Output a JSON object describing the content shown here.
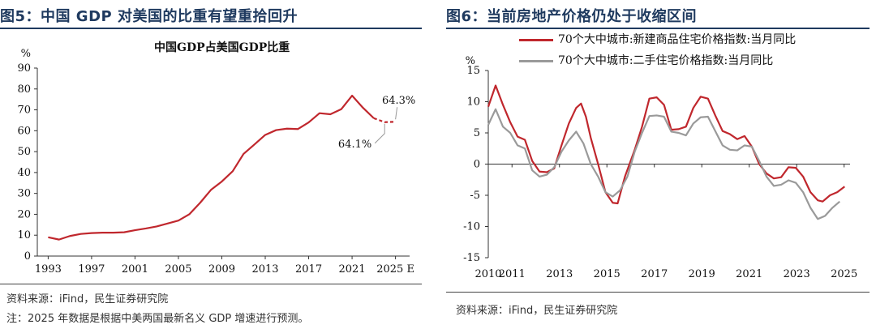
{
  "left": {
    "fig_title": "图5：中国 GDP 对美国的比重有望重拾回升",
    "chart_title": "中国GDP占美国GDP比重",
    "unit": "%",
    "annotation_2024": "64.1%",
    "annotation_2025": "64.3%",
    "source": "资料来源：iFind，民生证券研究院",
    "note": "注：2025 年数据是根据中美两国最新名义 GDP 增速进行预测。"
  },
  "right": {
    "fig_title": "图6：当前房地产价格仍处于收缩区间",
    "unit": "%",
    "source": "资料来源：iFind，民生证券研究院"
  },
  "chart_data": [
    {
      "type": "line",
      "title": "中国GDP占美国GDP比重",
      "ylabel": "%",
      "ylim": [
        0,
        90
      ],
      "yticks": [
        0,
        10,
        20,
        30,
        40,
        50,
        60,
        70,
        80,
        90
      ],
      "xticks": [
        "1993",
        "1997",
        "2001",
        "2005",
        "2009",
        "2013",
        "2017",
        "2021",
        "2025E"
      ],
      "grid": false,
      "color": "#c0272d",
      "x": [
        1993,
        1994,
        1995,
        1996,
        1997,
        1998,
        1999,
        2000,
        2001,
        2002,
        2003,
        2004,
        2005,
        2006,
        2007,
        2008,
        2009,
        2010,
        2011,
        2012,
        2013,
        2014,
        2015,
        2016,
        2017,
        2018,
        2019,
        2020,
        2021,
        2022,
        2023,
        2024,
        2025
      ],
      "values": [
        9.0,
        7.9,
        9.6,
        10.6,
        11.0,
        11.2,
        11.2,
        11.4,
        12.4,
        13.2,
        14.2,
        15.6,
        17.0,
        20.0,
        25.5,
        31.7,
        35.7,
        40.6,
        48.9,
        53.4,
        58.0,
        60.3,
        61.0,
        60.8,
        64.0,
        68.4,
        67.9,
        70.3,
        76.8,
        71.0,
        66.0,
        64.1,
        64.3
      ]
    },
    {
      "type": "line",
      "ylabel": "%",
      "ylim": [
        -15,
        15
      ],
      "yticks": [
        -15,
        -10,
        -5,
        0,
        5,
        10,
        15
      ],
      "xticks": [
        "2010",
        "2011",
        "2013",
        "2015",
        "2017",
        "2019",
        "2021",
        "2023",
        "2025"
      ],
      "legend_position": "top",
      "grid": false,
      "series": [
        {
          "name": "70个大中城市:新建商品住宅价格指数:当月同比",
          "color": "#c0272d",
          "points": [
            [
              0,
              9.2
            ],
            [
              3,
              12.6
            ],
            [
              6,
              9.5
            ],
            [
              9,
              6.7
            ],
            [
              12,
              4.4
            ],
            [
              15,
              3.9
            ],
            [
              18,
              0.5
            ],
            [
              21,
              -1.2
            ],
            [
              24,
              -1.3
            ],
            [
              27,
              -0.7
            ],
            [
              30,
              3.0
            ],
            [
              33,
              6.5
            ],
            [
              36,
              9.0
            ],
            [
              38,
              9.7
            ],
            [
              40,
              7.6
            ],
            [
              42,
              4.2
            ],
            [
              45,
              0.0
            ],
            [
              48,
              -4.5
            ],
            [
              51,
              -6.2
            ],
            [
              53,
              -6.3
            ],
            [
              56,
              -2.0
            ],
            [
              60,
              2.3
            ],
            [
              63,
              6.0
            ],
            [
              66,
              10.5
            ],
            [
              69,
              10.7
            ],
            [
              72,
              9.5
            ],
            [
              75,
              5.5
            ],
            [
              78,
              5.6
            ],
            [
              81,
              6.0
            ],
            [
              84,
              9.0
            ],
            [
              87,
              10.8
            ],
            [
              90,
              10.5
            ],
            [
              93,
              7.8
            ],
            [
              96,
              5.3
            ],
            [
              99,
              4.8
            ],
            [
              102,
              4.0
            ],
            [
              105,
              4.5
            ],
            [
              108,
              2.8
            ],
            [
              111,
              0.0
            ],
            [
              114,
              -1.5
            ],
            [
              117,
              -2.3
            ],
            [
              120,
              -2.1
            ],
            [
              123,
              -0.5
            ],
            [
              126,
              -0.6
            ],
            [
              129,
              -2.0
            ],
            [
              132,
              -4.5
            ],
            [
              135,
              -5.8
            ],
            [
              137,
              -6.0
            ],
            [
              140,
              -5.0
            ],
            [
              143,
              -4.5
            ],
            [
              146,
              -3.6
            ]
          ]
        },
        {
          "name": "70个大中城市:二手住宅价格指数:当月同比",
          "color": "#9a9a9a",
          "points": [
            [
              0,
              6.3
            ],
            [
              3,
              8.8
            ],
            [
              6,
              6.0
            ],
            [
              9,
              5.0
            ],
            [
              12,
              3.0
            ],
            [
              15,
              2.5
            ],
            [
              18,
              -1.0
            ],
            [
              21,
              -2.0
            ],
            [
              24,
              -1.7
            ],
            [
              27,
              -0.5
            ],
            [
              30,
              2.0
            ],
            [
              33,
              3.8
            ],
            [
              36,
              5.2
            ],
            [
              39,
              3.3
            ],
            [
              42,
              0.0
            ],
            [
              45,
              -2.0
            ],
            [
              48,
              -4.5
            ],
            [
              51,
              -5.2
            ],
            [
              54,
              -4.2
            ],
            [
              57,
              -2.0
            ],
            [
              60,
              2.0
            ],
            [
              63,
              5.0
            ],
            [
              66,
              7.7
            ],
            [
              69,
              7.8
            ],
            [
              72,
              7.6
            ],
            [
              75,
              5.2
            ],
            [
              78,
              5.0
            ],
            [
              81,
              4.6
            ],
            [
              84,
              6.5
            ],
            [
              87,
              7.5
            ],
            [
              90,
              7.6
            ],
            [
              93,
              5.3
            ],
            [
              96,
              3.0
            ],
            [
              99,
              2.3
            ],
            [
              102,
              2.2
            ],
            [
              105,
              3.0
            ],
            [
              108,
              2.8
            ],
            [
              111,
              0.5
            ],
            [
              114,
              -2.0
            ],
            [
              117,
              -3.5
            ],
            [
              120,
              -3.3
            ],
            [
              123,
              -2.6
            ],
            [
              126,
              -3.0
            ],
            [
              129,
              -4.5
            ],
            [
              132,
              -7.0
            ],
            [
              135,
              -8.8
            ],
            [
              138,
              -8.3
            ],
            [
              141,
              -7.0
            ],
            [
              144,
              -6.0
            ]
          ]
        }
      ]
    }
  ]
}
